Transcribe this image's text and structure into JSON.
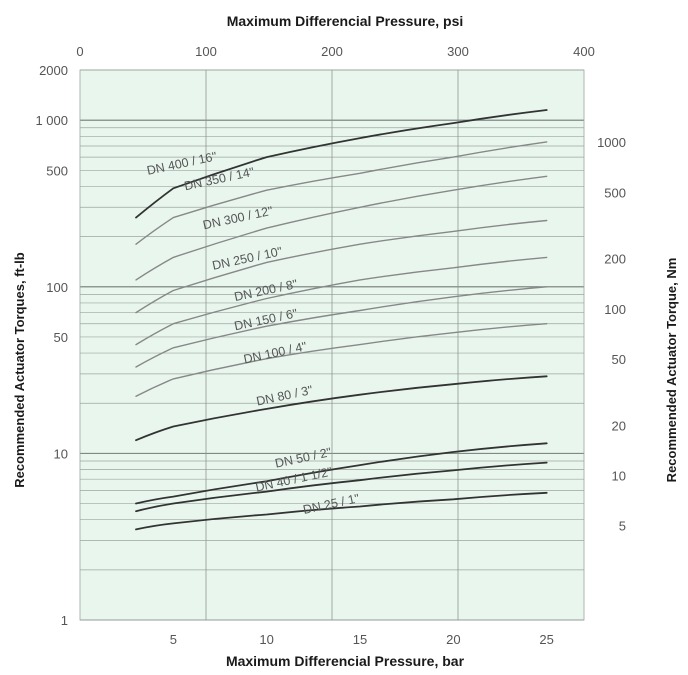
{
  "chart_data": {
    "type": "line",
    "title": "Maximum Differencial Pressure, psi",
    "xlabel": "Maximum Differencial Pressure, bar",
    "ylabel_left": "Recommended Actuator Torques, ft-lb",
    "ylabel_right": "Recommended Actuator Torque, Nm",
    "x_bottom": {
      "range": [
        0,
        27
      ],
      "ticks": [
        5,
        10,
        15,
        20,
        25
      ],
      "tick_labels": [
        "5",
        "10",
        "15",
        "20",
        "25"
      ]
    },
    "x_top": {
      "range": [
        0,
        400
      ],
      "ticks": [
        0,
        100,
        200,
        300,
        400
      ],
      "tick_labels": [
        "0",
        "100",
        "200",
        "300",
        "400"
      ]
    },
    "y_left": {
      "scale": "log",
      "range": [
        1,
        2000
      ],
      "ticks": [
        1,
        10,
        50,
        100,
        500,
        1000,
        2000
      ],
      "tick_labels": [
        "1",
        "10",
        "50",
        "100",
        "500",
        "1 000",
        "2000"
      ]
    },
    "y_right": {
      "scale": "log",
      "ticks": [
        5,
        10,
        20,
        50,
        100,
        200,
        500,
        1000
      ],
      "tick_labels": [
        "5",
        "10",
        "20",
        "50",
        "100",
        "200",
        "500",
        "1000"
      ]
    },
    "grid": true,
    "background_color": "#e9f6ee",
    "series": [
      {
        "name": "DN 400 / 16\"",
        "x": [
          3,
          5,
          10,
          15,
          20,
          25
        ],
        "y": [
          260,
          390,
          600,
          780,
          960,
          1150
        ],
        "color": "#333333"
      },
      {
        "name": "DN 350 / 14\"",
        "x": [
          3,
          5,
          10,
          15,
          20,
          25
        ],
        "y": [
          180,
          260,
          380,
          480,
          600,
          740
        ],
        "color": "#888888"
      },
      {
        "name": "DN 300 / 12\"",
        "x": [
          3,
          5,
          10,
          15,
          20,
          25
        ],
        "y": [
          110,
          150,
          225,
          300,
          380,
          460
        ],
        "color": "#888888"
      },
      {
        "name": "DN 250 / 10\"",
        "x": [
          3,
          5,
          10,
          15,
          20,
          25
        ],
        "y": [
          70,
          95,
          140,
          180,
          215,
          250
        ],
        "color": "#888888"
      },
      {
        "name": "DN 200 / 8\"",
        "x": [
          3,
          5,
          10,
          15,
          20,
          25
        ],
        "y": [
          45,
          60,
          85,
          110,
          130,
          150
        ],
        "color": "#888888"
      },
      {
        "name": "DN 150 / 6\"",
        "x": [
          3,
          5,
          10,
          15,
          20,
          25
        ],
        "y": [
          33,
          43,
          58,
          72,
          87,
          100
        ],
        "color": "#888888"
      },
      {
        "name": "DN 100 / 4\"",
        "x": [
          3,
          5,
          10,
          15,
          20,
          25
        ],
        "y": [
          22,
          28,
          37,
          45,
          53,
          60
        ],
        "color": "#888888"
      },
      {
        "name": "DN 80 / 3\"",
        "x": [
          3,
          5,
          10,
          15,
          20,
          25
        ],
        "y": [
          12,
          14.5,
          18.5,
          22.5,
          26,
          29
        ],
        "color": "#333333"
      },
      {
        "name": "DN 50 / 2\"",
        "x": [
          3,
          5,
          10,
          15,
          20,
          25
        ],
        "y": [
          5,
          5.5,
          6.8,
          8.5,
          10.2,
          11.5
        ],
        "color": "#333333"
      },
      {
        "name": "DN 40 / 1 1/2\"",
        "x": [
          3,
          5,
          10,
          15,
          20,
          25
        ],
        "y": [
          4.5,
          5,
          5.9,
          6.9,
          7.9,
          8.8
        ],
        "color": "#333333"
      },
      {
        "name": "DN 25 / 1\"",
        "x": [
          3,
          5,
          10,
          15,
          20,
          25
        ],
        "y": [
          3.5,
          3.8,
          4.3,
          4.8,
          5.3,
          5.8
        ],
        "color": "#333333"
      }
    ],
    "curve_labels": [
      {
        "text": "DN 400 / 16\"",
        "x": 5.5,
        "y": 520
      },
      {
        "text": "DN 350 / 14\"",
        "x": 7.5,
        "y": 420
      },
      {
        "text": "DN 300 / 12\"",
        "x": 8.5,
        "y": 245
      },
      {
        "text": "DN 250 / 10\"",
        "x": 9.0,
        "y": 140
      },
      {
        "text": "DN 200 / 8\"",
        "x": 10.0,
        "y": 90
      },
      {
        "text": "DN 150 / 6\"",
        "x": 10.0,
        "y": 60
      },
      {
        "text": "DN 100 / 4\"",
        "x": 10.5,
        "y": 38
      },
      {
        "text": "DN 80 / 3\"",
        "x": 11.0,
        "y": 21
      },
      {
        "text": "DN 50 / 2\"",
        "x": 12.0,
        "y": 8.9
      },
      {
        "text": "DN 40 / 1 1/2\"",
        "x": 11.5,
        "y": 6.6
      },
      {
        "text": "DN 25 / 1\"",
        "x": 13.5,
        "y": 4.7
      }
    ]
  }
}
